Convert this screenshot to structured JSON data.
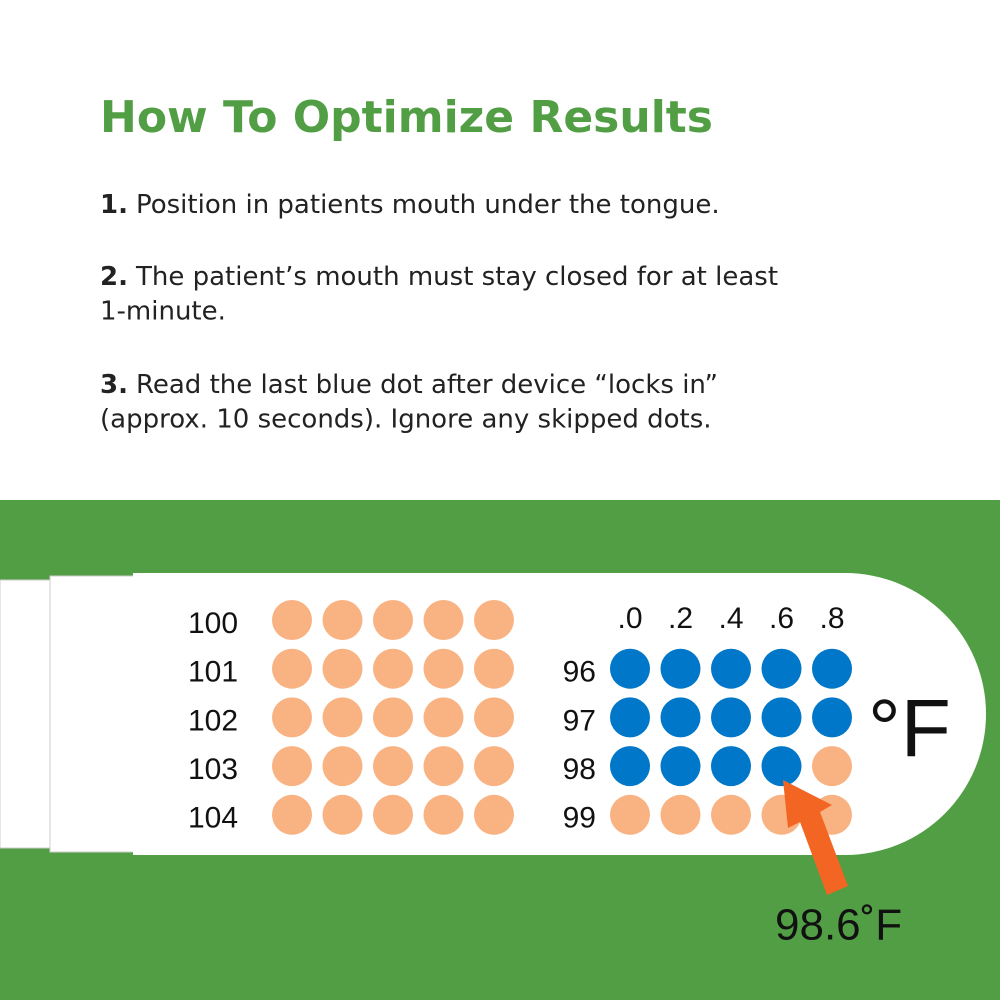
{
  "header": {
    "title": "How To Optimize Results"
  },
  "steps": [
    {
      "number": "1.",
      "lines": [
        "Position in patients mouth under the tongue."
      ]
    },
    {
      "number": "2.",
      "lines": [
        "The patient’s mouth must stay closed for at least",
        "1-minute."
      ]
    },
    {
      "number": "3.",
      "lines": [
        "Read the last blue dot after device “locks in”",
        "(approx. 10 seconds). Ignore any skipped dots."
      ]
    }
  ],
  "thermometer": {
    "left_rows": [
      "100",
      "101",
      "102",
      "103",
      "104"
    ],
    "right_rows": [
      "96",
      "97",
      "98",
      "99"
    ],
    "columns": [
      ".0",
      ".2",
      ".4",
      ".6",
      ".8"
    ],
    "unit": "°F",
    "reading": "98.6˚F"
  }
}
